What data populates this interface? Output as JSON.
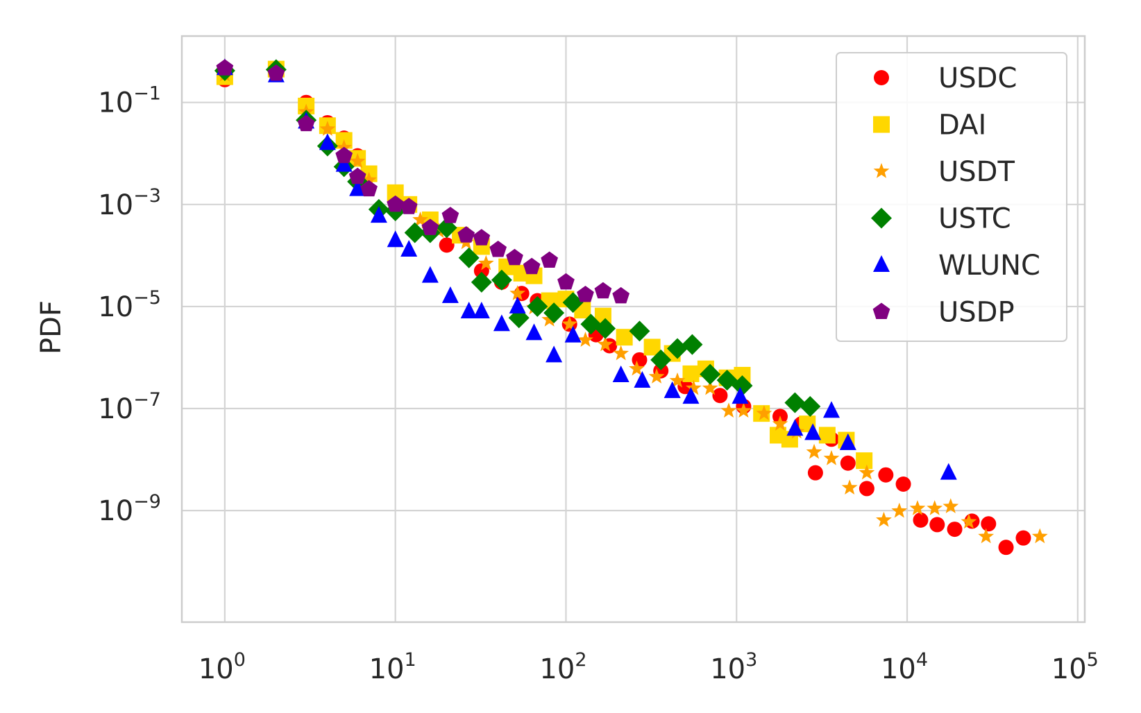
{
  "chart_data": {
    "type": "scatter",
    "title": "",
    "xlabel": "",
    "ylabel": "PDF",
    "xscale": "log",
    "yscale": "log",
    "xlim": [
      0.56,
      110000
    ],
    "ylim": [
      6.5e-12,
      2.0
    ],
    "xticks": [
      {
        "base": "10",
        "exp": "0",
        "value": 1
      },
      {
        "base": "10",
        "exp": "1",
        "value": 10
      },
      {
        "base": "10",
        "exp": "2",
        "value": 100
      },
      {
        "base": "10",
        "exp": "3",
        "value": 1000
      },
      {
        "base": "10",
        "exp": "4",
        "value": 10000
      },
      {
        "base": "10",
        "exp": "5",
        "value": 100000
      }
    ],
    "yticks": [
      {
        "base": "10",
        "exp": "−1",
        "value": 0.1
      },
      {
        "base": "10",
        "exp": "−3",
        "value": 0.001
      },
      {
        "base": "10",
        "exp": "−5",
        "value": 1e-05
      },
      {
        "base": "10",
        "exp": "−7",
        "value": 1e-07
      },
      {
        "base": "10",
        "exp": "−9",
        "value": 1e-09
      }
    ],
    "grid": true,
    "legend_position": "top-right",
    "series": [
      {
        "name": "USDC",
        "color": "#ff0000",
        "marker": "circle",
        "points": [
          [
            1,
            0.28
          ],
          [
            2,
            0.45
          ],
          [
            3,
            0.1
          ],
          [
            4,
            0.04
          ],
          [
            5,
            0.02
          ],
          [
            6,
            0.009
          ],
          [
            20,
            0.00016
          ],
          [
            32,
            5e-05
          ],
          [
            42,
            3e-05
          ],
          [
            55,
            1.8e-05
          ],
          [
            68,
            1.3e-05
          ],
          [
            105,
            4.5e-06
          ],
          [
            150,
            2.8e-06
          ],
          [
            180,
            1.7e-06
          ],
          [
            270,
            9e-07
          ],
          [
            360,
            5.5e-07
          ],
          [
            500,
            2.7e-07
          ],
          [
            800,
            1.8e-07
          ],
          [
            1100,
            1.1e-07
          ],
          [
            1800,
            7e-08
          ],
          [
            2400,
            5e-08
          ],
          [
            3600,
            2.5e-08
          ],
          [
            2900,
            5.5e-09
          ],
          [
            4500,
            8.5e-09
          ],
          [
            5800,
            2.7e-09
          ],
          [
            7500,
            5e-09
          ],
          [
            9500,
            3.3e-09
          ],
          [
            12000,
            6.5e-10
          ],
          [
            15000,
            5.3e-10
          ],
          [
            19000,
            4.3e-10
          ],
          [
            24000,
            6.2e-10
          ],
          [
            30000,
            5.5e-10
          ],
          [
            38000,
            1.9e-10
          ],
          [
            48000,
            2.9e-10
          ]
        ]
      },
      {
        "name": "DAI",
        "color": "#ffd700",
        "marker": "square",
        "points": [
          [
            1,
            0.32
          ],
          [
            2,
            0.45
          ],
          [
            3,
            0.085
          ],
          [
            4,
            0.035
          ],
          [
            5,
            0.018
          ],
          [
            6,
            0.008
          ],
          [
            7,
            0.004
          ],
          [
            10,
            0.0017
          ],
          [
            12,
            0.001
          ],
          [
            16,
            0.0005
          ],
          [
            24,
            0.00025
          ],
          [
            32,
            0.00015
          ],
          [
            45,
            6e-05
          ],
          [
            55,
            4.5e-05
          ],
          [
            65,
            4e-05
          ],
          [
            80,
            1.3e-05
          ],
          [
            100,
            1.4e-05
          ],
          [
            125,
            8.5e-06
          ],
          [
            165,
            6.5e-06
          ],
          [
            220,
            2.5e-06
          ],
          [
            320,
            1.6e-06
          ],
          [
            420,
            1.2e-06
          ],
          [
            540,
            4.8e-07
          ],
          [
            660,
            6e-07
          ],
          [
            880,
            4e-07
          ],
          [
            1080,
            4.5e-07
          ],
          [
            1400,
            8e-08
          ],
          [
            1750,
            3e-08
          ],
          [
            2050,
            2.5e-08
          ],
          [
            2600,
            5e-08
          ],
          [
            3400,
            3e-08
          ],
          [
            4400,
            2.4e-08
          ],
          [
            5600,
            9.5e-09
          ]
        ]
      },
      {
        "name": "USDT",
        "color": "#ff9f00",
        "marker": "star",
        "points": [
          [
            1,
            0.35
          ],
          [
            2,
            0.46
          ],
          [
            3,
            0.065
          ],
          [
            4,
            0.03
          ],
          [
            5,
            0.013
          ],
          [
            6,
            0.007
          ],
          [
            7,
            0.003
          ],
          [
            10,
            0.00085
          ],
          [
            14,
            0.0005
          ],
          [
            18,
            0.0003
          ],
          [
            26,
            0.00018
          ],
          [
            34,
            7e-05
          ],
          [
            52,
            1.8e-05
          ],
          [
            65,
            9.5e-06
          ],
          [
            80,
            5.5e-06
          ],
          [
            105,
            4.5e-06
          ],
          [
            130,
            2.2e-06
          ],
          [
            170,
            1.8e-06
          ],
          [
            210,
            1.2e-06
          ],
          [
            260,
            6e-07
          ],
          [
            340,
            4.2e-07
          ],
          [
            450,
            3.5e-07
          ],
          [
            560,
            2.5e-07
          ],
          [
            700,
            2.5e-07
          ],
          [
            900,
            9e-08
          ],
          [
            1100,
            9e-08
          ],
          [
            1450,
            8e-08
          ],
          [
            1800,
            5e-08
          ],
          [
            2250,
            3.5e-08
          ],
          [
            2850,
            1.4e-08
          ],
          [
            3600,
            1.05e-08
          ],
          [
            4600,
            2.8e-09
          ],
          [
            5800,
            5.5e-09
          ],
          [
            7300,
            6.5e-10
          ],
          [
            9000,
            9.8e-10
          ],
          [
            11500,
            1.1e-09
          ],
          [
            14500,
            1.1e-09
          ],
          [
            18000,
            1.2e-09
          ],
          [
            23000,
            6e-10
          ],
          [
            29000,
            3.1e-10
          ],
          [
            60000,
            3.1e-10
          ]
        ]
      },
      {
        "name": "USTC",
        "color": "#008000",
        "marker": "diamond",
        "points": [
          [
            1,
            0.42
          ],
          [
            2,
            0.44
          ],
          [
            3,
            0.045
          ],
          [
            4,
            0.014
          ],
          [
            5,
            0.0055
          ],
          [
            6,
            0.0028
          ],
          [
            8,
            0.0008
          ],
          [
            10,
            0.00075
          ],
          [
            13,
            0.00028
          ],
          [
            16,
            0.00028
          ],
          [
            20,
            0.00035
          ],
          [
            27,
            9e-05
          ],
          [
            32,
            3e-05
          ],
          [
            42,
            3.3e-05
          ],
          [
            53,
            6e-06
          ],
          [
            68,
            1e-05
          ],
          [
            85,
            7.5e-06
          ],
          [
            110,
            1.2e-05
          ],
          [
            140,
            4.5e-06
          ],
          [
            170,
            3.7e-06
          ],
          [
            270,
            3.3e-06
          ],
          [
            360,
            9e-07
          ],
          [
            450,
            1.5e-06
          ],
          [
            550,
            1.8e-06
          ],
          [
            700,
            4.7e-07
          ],
          [
            880,
            3.6e-07
          ],
          [
            1080,
            2.8e-07
          ],
          [
            2200,
            1.3e-07
          ],
          [
            2700,
            1.1e-07
          ]
        ]
      },
      {
        "name": "WLUNC",
        "color": "#0000ff",
        "marker": "triangle",
        "points": [
          [
            1,
            0.47
          ],
          [
            2,
            0.34
          ],
          [
            3,
            0.042
          ],
          [
            4,
            0.016
          ],
          [
            5,
            0.006
          ],
          [
            6,
            0.002
          ],
          [
            8,
            0.0006
          ],
          [
            10,
            0.0002
          ],
          [
            12,
            0.00013
          ],
          [
            16,
            4e-05
          ],
          [
            21,
            1.6e-05
          ],
          [
            27,
            8e-06
          ],
          [
            32,
            8e-06
          ],
          [
            42,
            4.5e-06
          ],
          [
            52,
            1e-05
          ],
          [
            65,
            3e-06
          ],
          [
            85,
            1.1e-06
          ],
          [
            110,
            2.7e-06
          ],
          [
            210,
            4.5e-07
          ],
          [
            280,
            3.5e-07
          ],
          [
            420,
            2.2e-07
          ],
          [
            540,
            1.7e-07
          ],
          [
            1050,
            1.7e-07
          ],
          [
            2200,
            4e-08
          ],
          [
            2800,
            3.3e-08
          ],
          [
            3600,
            9e-08
          ],
          [
            4500,
            2.1e-08
          ],
          [
            17500,
            5.5e-09
          ]
        ]
      },
      {
        "name": "USDP",
        "color": "#800080",
        "marker": "pentagon",
        "points": [
          [
            1,
            0.47
          ],
          [
            2,
            0.37
          ],
          [
            3,
            0.038
          ],
          [
            5,
            0.009
          ],
          [
            6,
            0.0035
          ],
          [
            7,
            0.002
          ],
          [
            10,
            0.001
          ],
          [
            12,
            0.0009
          ],
          [
            16,
            0.00035
          ],
          [
            21,
            0.0006
          ],
          [
            26,
            0.00025
          ],
          [
            32,
            0.00022
          ],
          [
            40,
            0.00013
          ],
          [
            50,
            9e-05
          ],
          [
            63,
            6e-05
          ],
          [
            80,
            8e-05
          ],
          [
            100,
            3e-05
          ],
          [
            130,
            1.7e-05
          ],
          [
            165,
            2e-05
          ],
          [
            210,
            1.6e-05
          ]
        ]
      }
    ]
  }
}
